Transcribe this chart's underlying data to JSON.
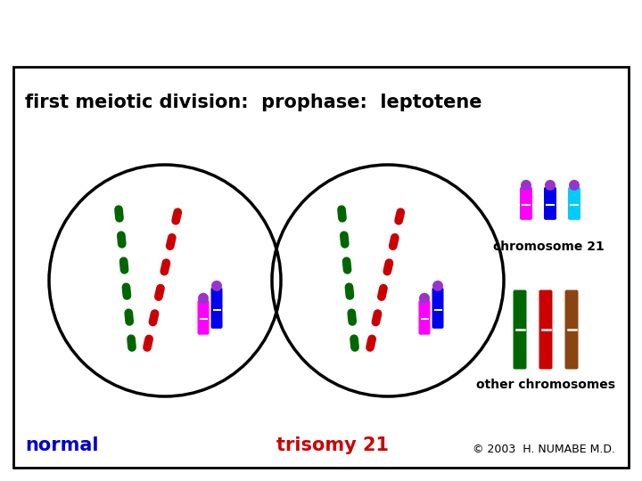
{
  "title": "first meiotic division:  prophase:  leptotene",
  "normal_label": "normal",
  "trisomy_label": "trisomy 21",
  "copyright": "© 2003  H. NUMABE M.D.",
  "chromosome21_label": "chromosome 21",
  "other_chromosomes_label": "other chromosomes",
  "bg_color": "#ffffff",
  "border_color": "#000000",
  "title_color": "#000000",
  "normal_label_color": "#0000cc",
  "trisomy_label_color": "#cc0000",
  "chr21_colors": [
    "#ff00ff",
    "#0000ee",
    "#00ccff"
  ],
  "other_chr_colors": [
    "#006600",
    "#cc0000",
    "#8B4513"
  ],
  "cap_color": "#9933cc"
}
